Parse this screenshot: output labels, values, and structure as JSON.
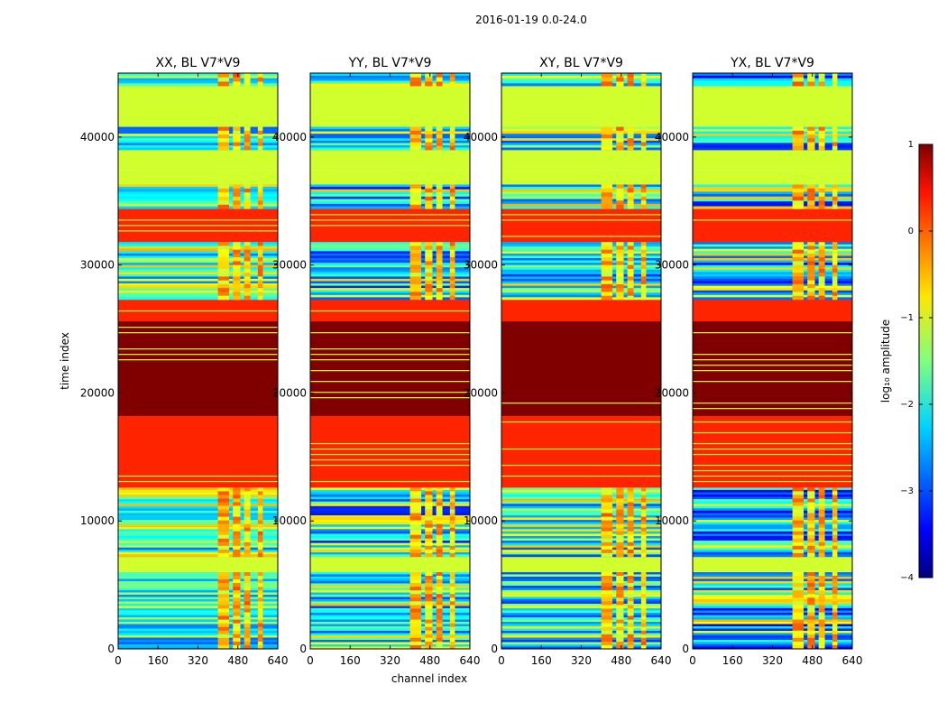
{
  "figure_title": "2016-01-19 0.0-24.0",
  "colors": {
    "sat": "#7f0000",
    "orange": "#ff7a00",
    "green": "#9cff5a",
    "yellow": "#e8ff1a",
    "cyan": "#3ee6ff",
    "blue": "#0030ff",
    "navy": "#00008f"
  },
  "chart_data": [
    {
      "type": "heatmap",
      "title": "XX, BL V7*V9",
      "xlabel": "",
      "ylabel": "time index",
      "xlim": [
        0,
        640
      ],
      "ylim": [
        0,
        45000
      ],
      "xticks": [
        "0",
        "160",
        "320",
        "480",
        "640"
      ],
      "yticks": [
        "0",
        "10000",
        "20000",
        "30000",
        "40000"
      ],
      "low_level": -2.0
    },
    {
      "type": "heatmap",
      "title": "YY, BL V7*V9",
      "xlabel": "channel index",
      "ylabel": "",
      "xlim": [
        0,
        640
      ],
      "ylim": [
        0,
        45000
      ],
      "xticks": [
        "0",
        "160",
        "320",
        "480",
        "640"
      ],
      "yticks": [
        "0",
        "10000",
        "20000",
        "30000",
        "40000"
      ],
      "low_level": -2.4
    },
    {
      "type": "heatmap",
      "title": "XY, BL V7*V9",
      "xlabel": "",
      "ylabel": "",
      "xlim": [
        0,
        640
      ],
      "ylim": [
        0,
        45000
      ],
      "xticks": [
        "0",
        "160",
        "320",
        "480",
        "640"
      ],
      "yticks": [
        "0",
        "10000",
        "20000",
        "30000",
        "40000"
      ],
      "low_level": -2.2
    },
    {
      "type": "heatmap",
      "title": "YX, BL V7*V9",
      "xlabel": "",
      "ylabel": "",
      "xlim": [
        0,
        640
      ],
      "ylim": [
        0,
        45000
      ],
      "xticks": [
        "0",
        "160",
        "320",
        "480",
        "640"
      ],
      "yticks": [
        "0",
        "10000",
        "20000",
        "30000",
        "40000"
      ],
      "low_level": -2.6
    }
  ],
  "bands": [
    {
      "y0": 0,
      "y1": 6000,
      "kind": "noisy"
    },
    {
      "y0": 6000,
      "y1": 7200,
      "kind": "flat",
      "level": -1.1
    },
    {
      "y0": 7200,
      "y1": 12600,
      "kind": "noisy"
    },
    {
      "y0": 12600,
      "y1": 18200,
      "kind": "flat",
      "level": 0.2
    },
    {
      "y0": 18200,
      "y1": 25600,
      "kind": "flat",
      "level": 1.0
    },
    {
      "y0": 25600,
      "y1": 27300,
      "kind": "flat",
      "level": 0.2
    },
    {
      "y0": 27300,
      "y1": 31800,
      "kind": "noisy"
    },
    {
      "y0": 31800,
      "y1": 34400,
      "kind": "flat",
      "level": 0.2
    },
    {
      "y0": 34400,
      "y1": 36300,
      "kind": "noisy"
    },
    {
      "y0": 36300,
      "y1": 37400,
      "kind": "flat",
      "level": -1.1
    },
    {
      "y0": 37400,
      "y1": 39000,
      "kind": "flat",
      "level": -1.1
    },
    {
      "y0": 39000,
      "y1": 40800,
      "kind": "noisy"
    },
    {
      "y0": 40800,
      "y1": 44000,
      "kind": "flat",
      "level": -1.1
    },
    {
      "y0": 44000,
      "y1": 45000,
      "kind": "noisy"
    }
  ],
  "hot_columns": [
    [
      400,
      445
    ],
    [
      460,
      490
    ],
    [
      505,
      530
    ],
    [
      560,
      580
    ]
  ],
  "colorbar": {
    "label": "log₁₀ amplitude",
    "min": -4,
    "max": 1,
    "ticks": [
      "1",
      "0",
      "−1",
      "−2",
      "−3",
      "−4"
    ]
  }
}
